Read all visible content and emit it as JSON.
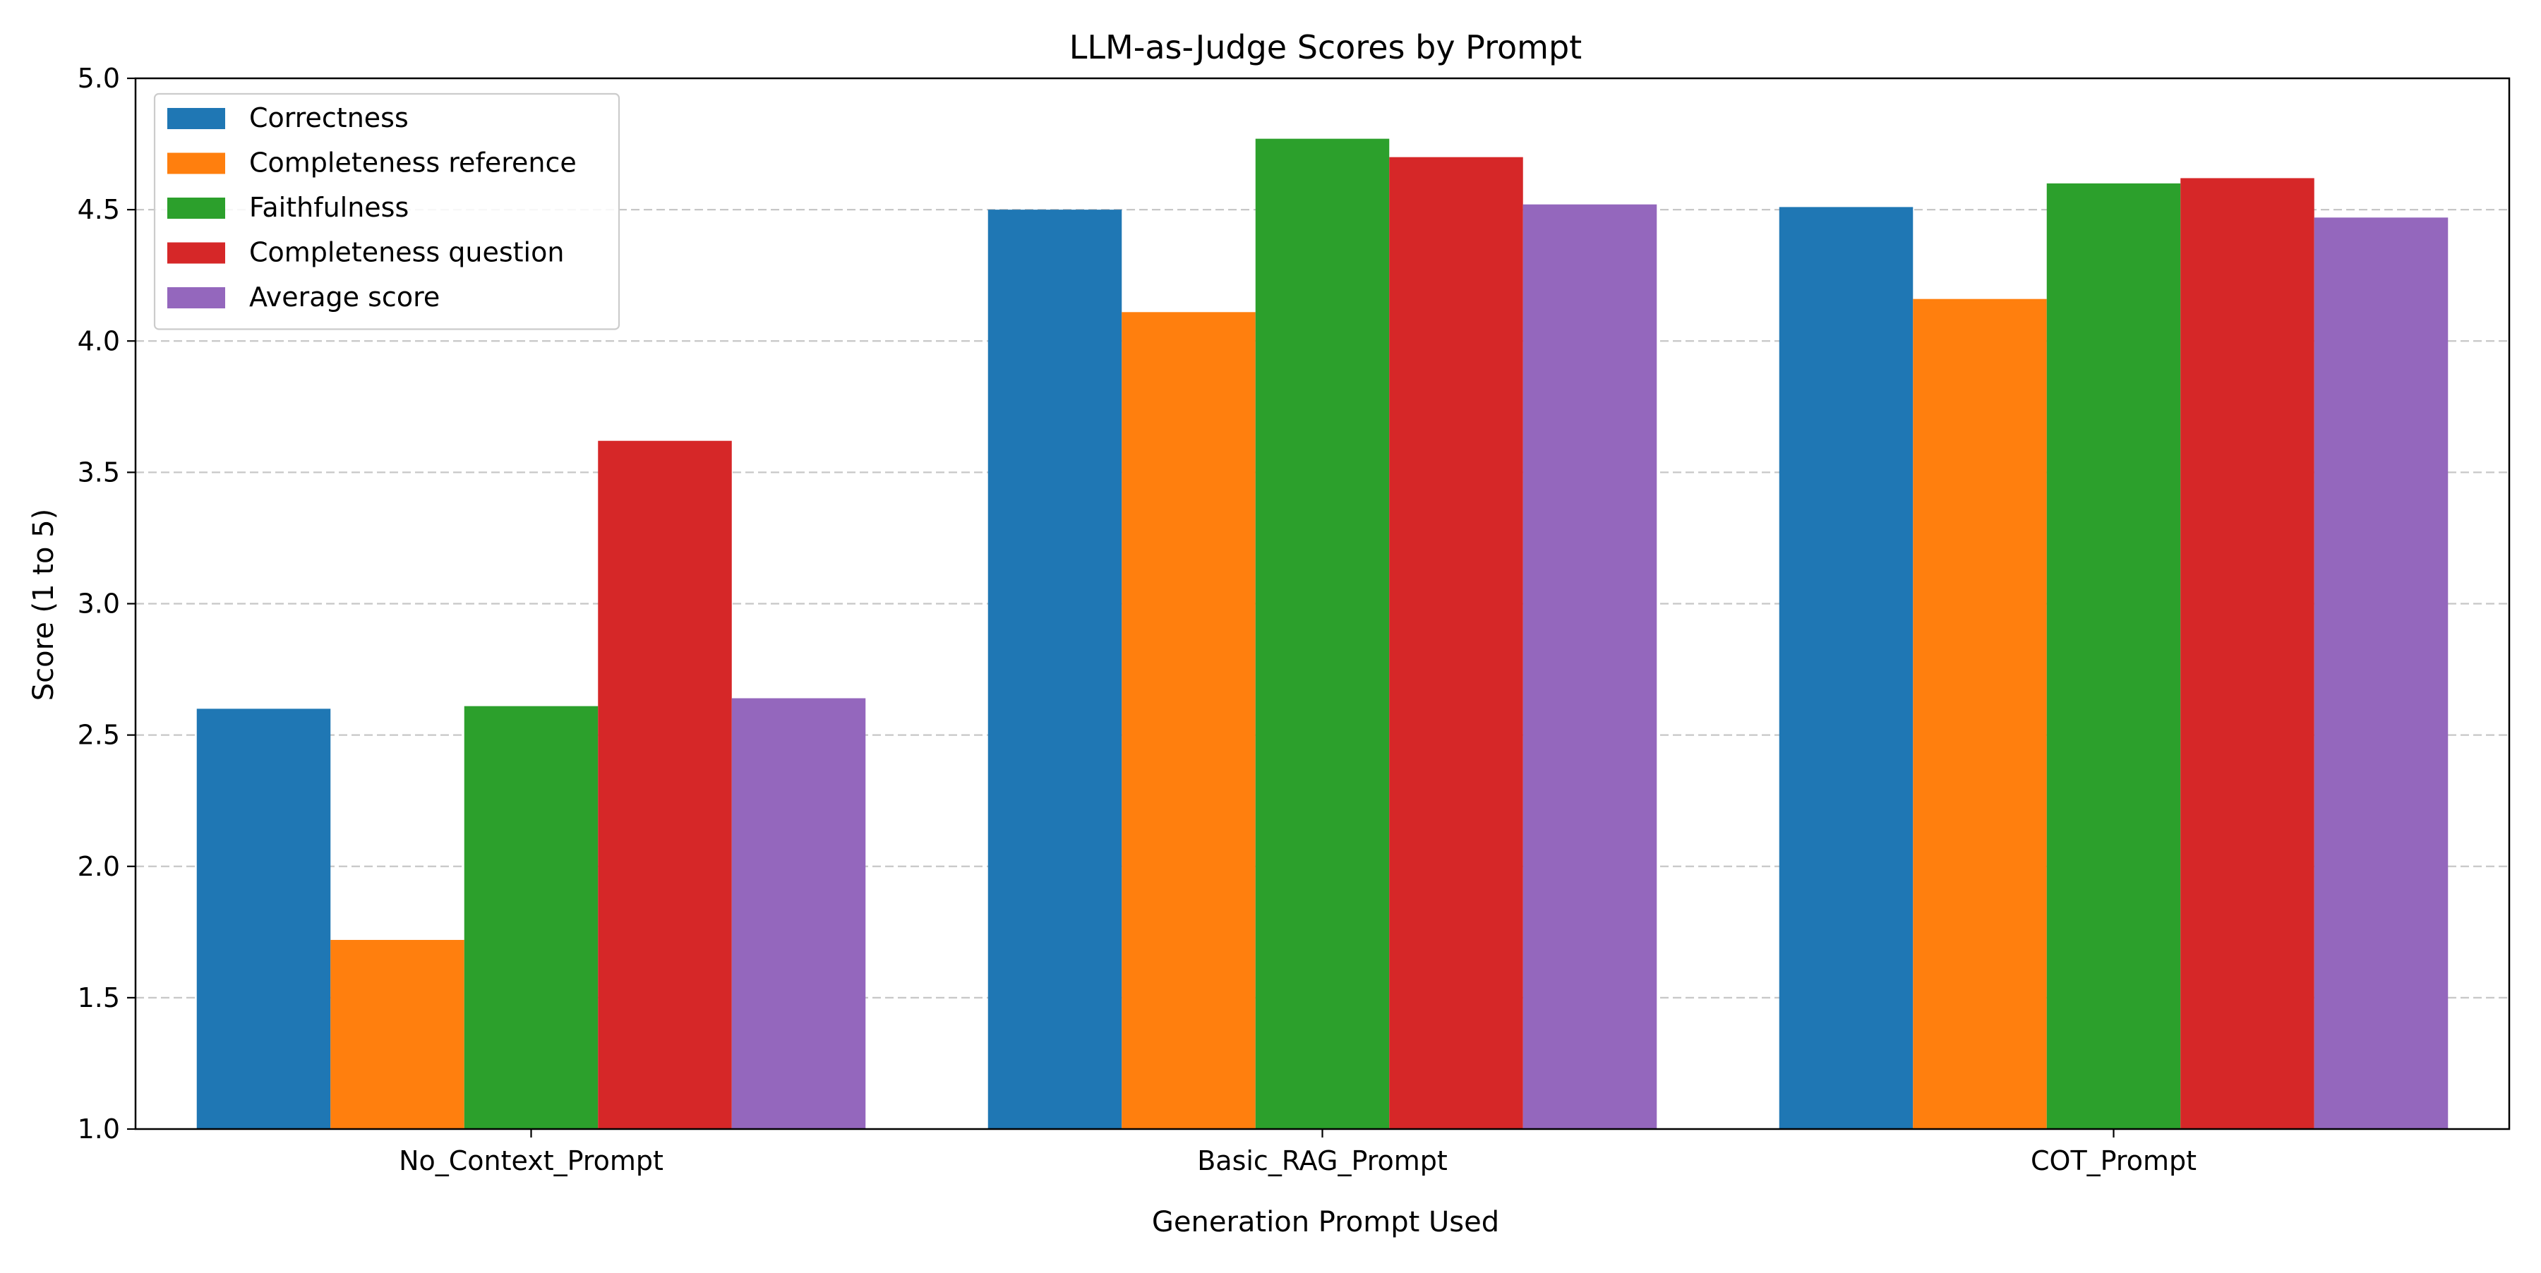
{
  "chart_data": {
    "type": "bar",
    "title": "LLM-as-Judge Scores by Prompt",
    "xlabel": "Generation Prompt Used",
    "ylabel": "Score (1 to 5)",
    "ylim": [
      1.0,
      5.0
    ],
    "yticks": [
      "1.0",
      "1.5",
      "2.0",
      "2.5",
      "3.0",
      "3.5",
      "4.0",
      "4.5",
      "5.0"
    ],
    "grid": "y-dashed",
    "legend_position": "top-left",
    "categories": [
      "No_Context_Prompt",
      "Basic_RAG_Prompt",
      "COT_Prompt"
    ],
    "series": [
      {
        "name": "Correctness",
        "color": "#1f77b4",
        "values": [
          2.6,
          4.5,
          4.51
        ]
      },
      {
        "name": "Completeness reference",
        "color": "#ff7f0e",
        "values": [
          1.72,
          4.11,
          4.16
        ]
      },
      {
        "name": "Faithfulness",
        "color": "#2ca02c",
        "values": [
          2.61,
          4.77,
          4.6
        ]
      },
      {
        "name": "Completeness question",
        "color": "#d62728",
        "values": [
          3.62,
          4.7,
          4.62
        ]
      },
      {
        "name": "Average score",
        "color": "#9467bd",
        "values": [
          2.64,
          4.52,
          4.47
        ]
      }
    ]
  }
}
